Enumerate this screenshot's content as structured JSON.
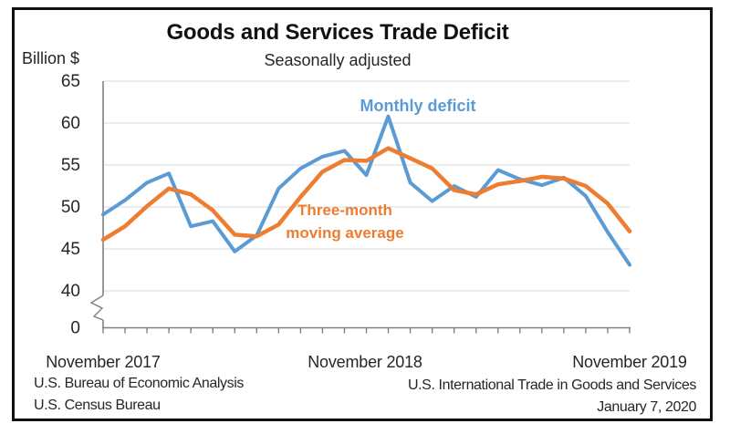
{
  "title": "Goods and Services Trade Deficit",
  "subtitle": "Seasonally adjusted",
  "y_axis": {
    "unit_label": "Billion $",
    "ticks": [
      65,
      60,
      55,
      50,
      45,
      40,
      0
    ],
    "has_axis_break": true
  },
  "x_axis": {
    "label_2017": "November 2017",
    "label_2018": "November 2018",
    "label_2019": "November 2019"
  },
  "annotations": {
    "monthly_label": "Monthly deficit",
    "moving_avg_label_line1": "Three-month",
    "moving_avg_label_line2": "moving average"
  },
  "footer": {
    "left_line1": "U.S. Bureau of Economic Analysis",
    "left_line2": "U.S. Census Bureau",
    "right_line1": "U.S. International Trade in Goods and Services",
    "right_line2": "January 7, 2020"
  },
  "colors": {
    "monthly": "#5B9BD5",
    "moving_average": "#ED7D31",
    "grid": "#D9D9D9",
    "axis": "#808080",
    "text": "#262626"
  },
  "chart_data": {
    "type": "line",
    "title": "Goods and Services Trade Deficit",
    "subtitle": "Seasonally adjusted",
    "ylabel": "Billion $",
    "yticks": [
      65,
      60,
      55,
      50,
      45,
      40,
      0
    ],
    "ylim": [
      40,
      65
    ],
    "axis_break_between": [
      0,
      40
    ],
    "grid": true,
    "legend_position": "inline-annotations",
    "x": [
      "Nov 2017",
      "Dec 2017",
      "Jan 2018",
      "Feb 2018",
      "Mar 2018",
      "Apr 2018",
      "May 2018",
      "Jun 2018",
      "Jul 2018",
      "Aug 2018",
      "Sep 2018",
      "Oct 2018",
      "Nov 2018",
      "Dec 2018",
      "Jan 2019",
      "Feb 2019",
      "Mar 2019",
      "Apr 2019",
      "May 2019",
      "Jun 2019",
      "Jul 2019",
      "Aug 2019",
      "Sep 2019",
      "Oct 2019",
      "Nov 2019"
    ],
    "x_axis_labels_shown": [
      {
        "text": "November 2017",
        "index": 0
      },
      {
        "text": "November 2018",
        "index": 12
      },
      {
        "text": "November 2019",
        "index": 24
      }
    ],
    "series": [
      {
        "name": "Monthly deficit",
        "color": "#5B9BD5",
        "values": [
          49.1,
          50.8,
          52.9,
          54.0,
          47.7,
          48.3,
          44.7,
          46.6,
          52.2,
          54.6,
          56.0,
          56.7,
          53.8,
          60.8,
          52.9,
          50.7,
          52.5,
          51.2,
          54.4,
          53.3,
          52.6,
          53.5,
          51.3,
          47.0,
          43.1
        ]
      },
      {
        "name": "Three-month moving average",
        "color": "#ED7D31",
        "values": [
          46.1,
          47.7,
          50.1,
          52.2,
          51.5,
          49.6,
          46.7,
          46.5,
          47.9,
          51.2,
          54.2,
          55.6,
          55.5,
          57.0,
          55.8,
          54.6,
          52.0,
          51.5,
          52.7,
          53.1,
          53.6,
          53.4,
          52.5,
          50.4,
          47.1
        ]
      }
    ]
  }
}
